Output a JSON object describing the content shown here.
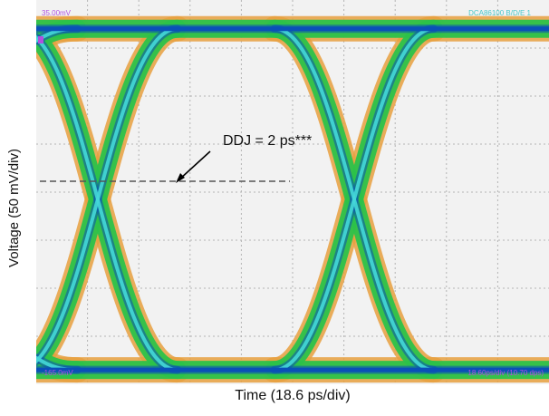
{
  "chart_data": {
    "type": "eye-diagram",
    "xlabel": "Time (18.6 ps/div)",
    "ylabel": "Voltage (50 mV/div)",
    "x_divisions": 10,
    "y_divisions": 8,
    "annotation": "DDJ = 2 ps***",
    "readouts": {
      "top_left": "35.00mV",
      "top_right": "DCA86100 B/D/E 1",
      "bottom_left": "-165.0mV",
      "bottom_right": "18.60ps/div  (10.70 dps)"
    },
    "eye": {
      "ui_divisions": 5.0,
      "crossing_x_div": [
        1.2,
        6.2
      ],
      "level_high_div": 0.6,
      "level_low_div": 7.7,
      "crossing_y_div": 3.7,
      "ddj_ps": 2
    },
    "colors": {
      "background": "#f2f2f2",
      "grid": "#b4b4b4",
      "trace_low": "#e8a040",
      "trace_mid": "#2cc24a",
      "trace_high": "#0a50b8",
      "trace_core": "#45d8d8",
      "readout": "#b050e0",
      "readout_alt": "#48c8c8"
    }
  }
}
